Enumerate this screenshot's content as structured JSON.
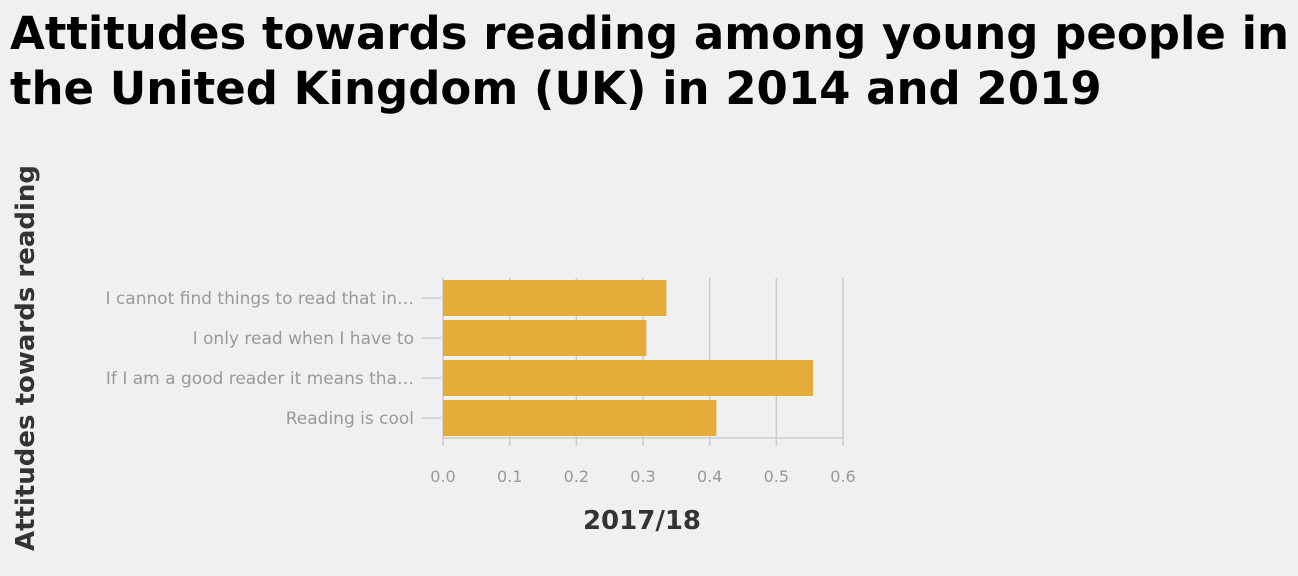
{
  "chart_data": {
    "type": "bar",
    "orientation": "horizontal",
    "title": "Attitudes towards reading among young people in the United Kingdom (UK) in 2014 and 2019",
    "xlabel": "2017/18",
    "ylabel": "Attitudes towards reading",
    "categories": [
      "I cannot find things to read that in…",
      "I only read when I have to",
      "If I am a good reader it means tha…",
      "Reading is cool"
    ],
    "values": [
      0.335,
      0.305,
      0.555,
      0.41
    ],
    "xlim": [
      0,
      0.6
    ],
    "xticks": [
      "0.0",
      "0.1",
      "0.2",
      "0.3",
      "0.4",
      "0.5",
      "0.6"
    ],
    "grid": "vertical",
    "colors": {
      "bar": "#e5ac3a",
      "grid": "#cccccc",
      "tick_label": "#999999",
      "axis_label": "#333333",
      "background": "#f0f0f0"
    }
  }
}
